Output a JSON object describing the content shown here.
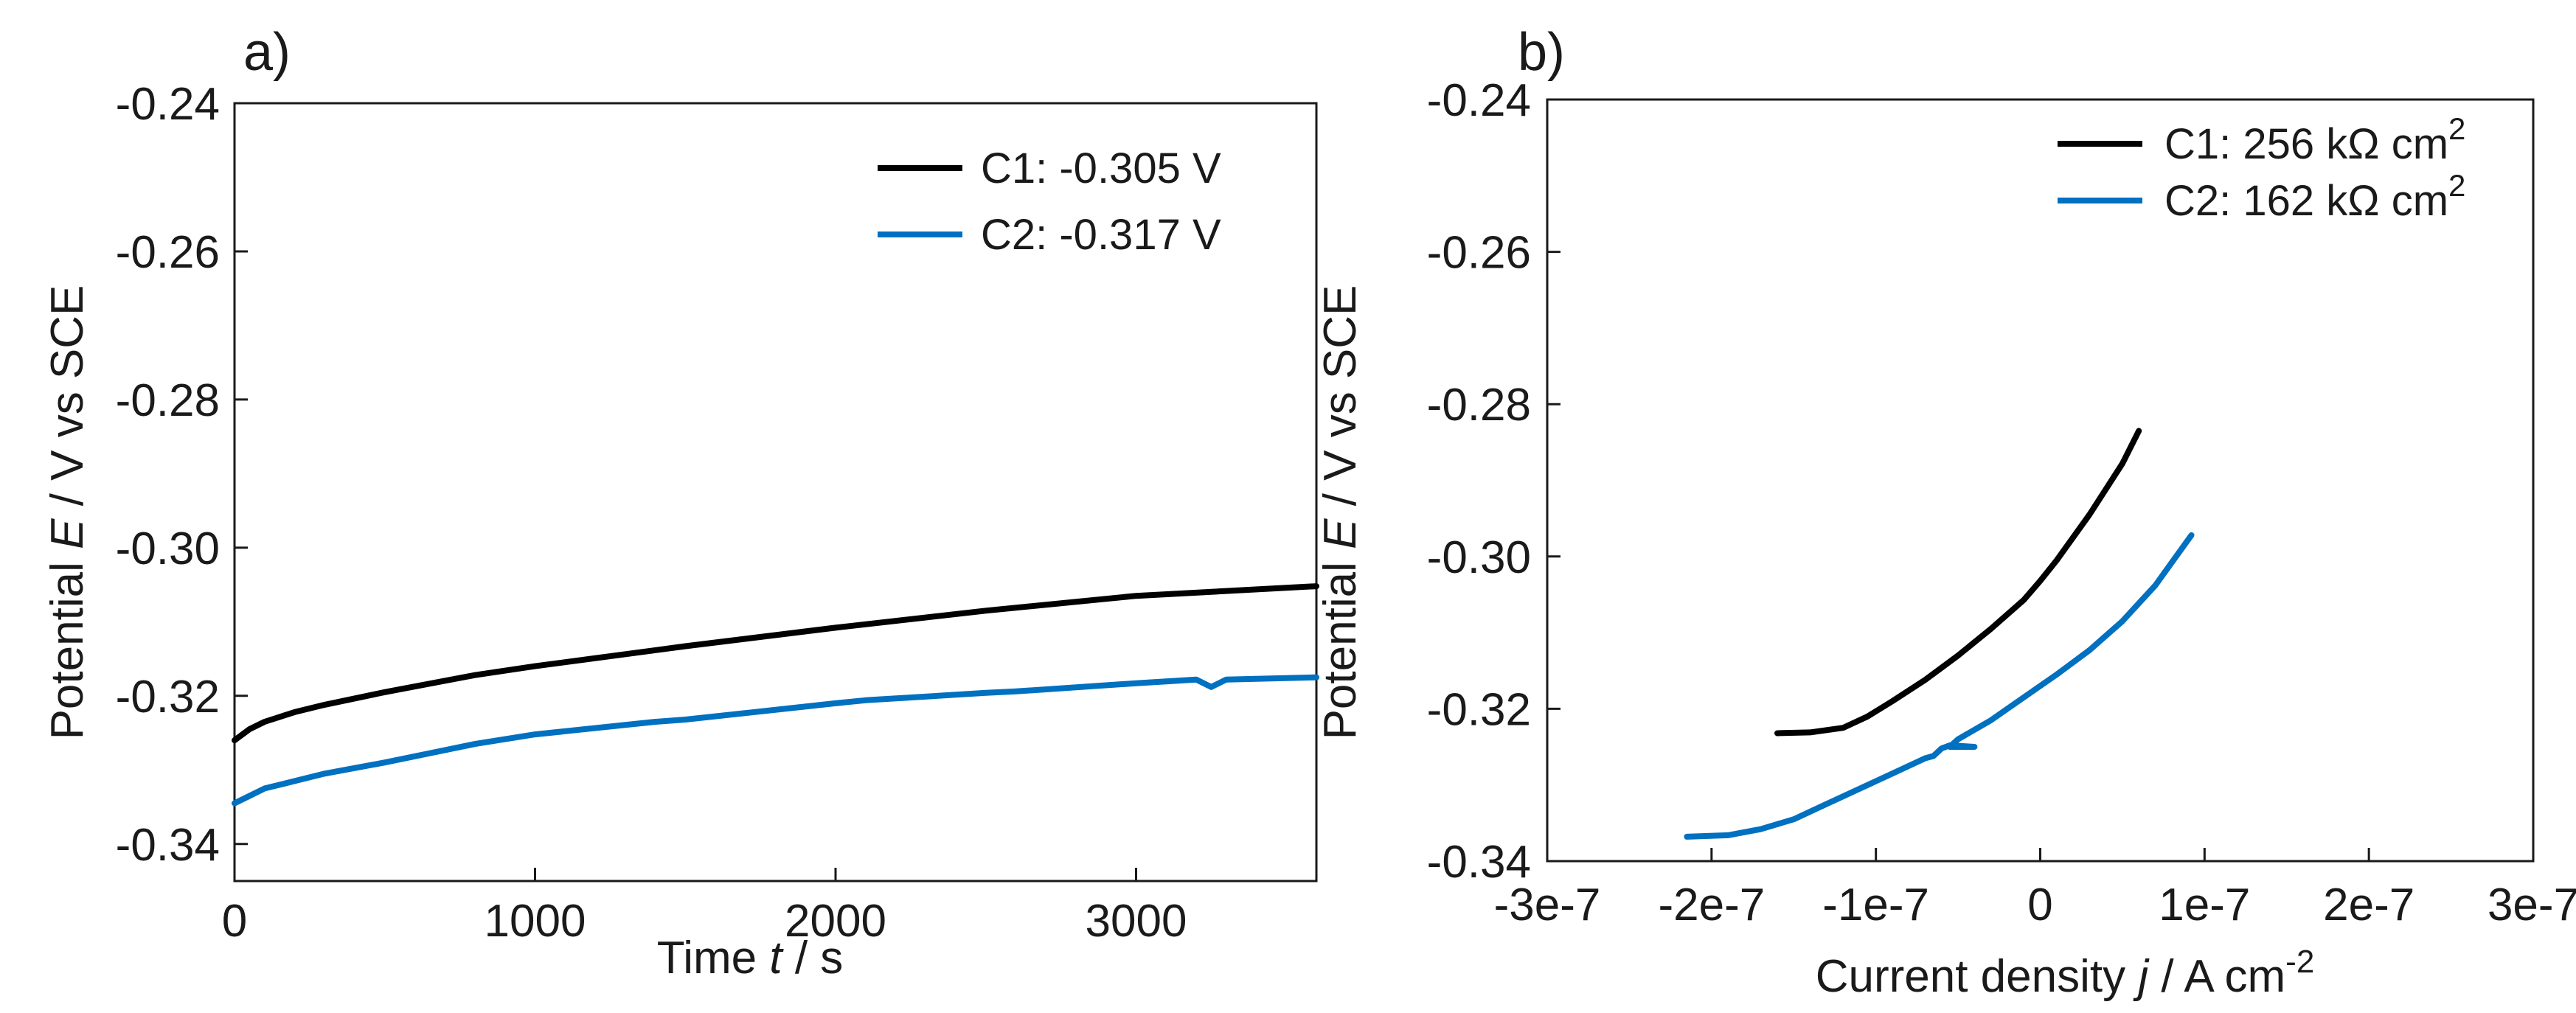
{
  "chart_data": [
    {
      "panel": "a)",
      "type": "line",
      "xlabel": {
        "prefix": "Time ",
        "var": "t",
        "suffix": " / s"
      },
      "ylabel": {
        "prefix": "Potential ",
        "var": "E",
        "suffix": " / V vs SCE"
      },
      "xlim": [
        0,
        3600
      ],
      "ylim": [
        -0.345,
        -0.24
      ],
      "xticks": [
        0,
        1000,
        2000,
        3000
      ],
      "xtick_labels": [
        "0",
        "1000",
        "2000",
        "3000"
      ],
      "yticks": [
        -0.34,
        -0.32,
        -0.3,
        -0.28,
        -0.26,
        -0.24
      ],
      "ytick_labels": [
        "-0.34",
        "-0.32",
        "-0.30",
        "-0.28",
        "-0.26",
        "-0.24"
      ],
      "legend_position": "top-right",
      "series": [
        {
          "name": "C1: -0.305 V",
          "color": "#000000",
          "x": [
            0,
            50,
            100,
            200,
            300,
            500,
            800,
            1000,
            1500,
            2000,
            2500,
            3000,
            3600
          ],
          "y": [
            -0.326,
            -0.3245,
            -0.3235,
            -0.3222,
            -0.3212,
            -0.3195,
            -0.3172,
            -0.316,
            -0.3133,
            -0.3108,
            -0.3085,
            -0.3065,
            -0.3052
          ]
        },
        {
          "name": "C2: -0.317 V",
          "color": "#0070c0",
          "x": [
            0,
            50,
            100,
            200,
            300,
            500,
            800,
            1000,
            1400,
            1500,
            2000,
            2100,
            2500,
            2600,
            3000,
            3200,
            3250,
            3300,
            3600
          ],
          "y": [
            -0.3345,
            -0.3335,
            -0.3325,
            -0.3315,
            -0.3305,
            -0.329,
            -0.3265,
            -0.3252,
            -0.3235,
            -0.3232,
            -0.321,
            -0.3206,
            -0.3196,
            -0.3194,
            -0.3183,
            -0.3178,
            -0.3188,
            -0.3178,
            -0.3175
          ]
        }
      ]
    },
    {
      "panel": "b)",
      "type": "line",
      "xlabel": {
        "prefix": "Current density ",
        "var": "j",
        "suffix": " / A cm",
        "sup": "-2"
      },
      "ylabel": {
        "prefix": "Potential ",
        "var": "E",
        "suffix": " / V vs SCE"
      },
      "xlim": [
        -3e-07,
        3e-07
      ],
      "ylim": [
        -0.34,
        -0.24
      ],
      "xticks": [
        -3e-07,
        -2e-07,
        -1e-07,
        0,
        1e-07,
        2e-07,
        3e-07
      ],
      "xtick_labels": [
        "-3e-7",
        "-2e-7",
        "-1e-7",
        "0",
        "1e-7",
        "2e-7",
        "3e-7"
      ],
      "yticks": [
        -0.34,
        -0.32,
        -0.3,
        -0.28,
        -0.26,
        -0.24
      ],
      "ytick_labels": [
        "-0.34",
        "-0.32",
        "-0.30",
        "-0.28",
        "-0.26",
        "-0.24"
      ],
      "legend_position": "top-right",
      "series": [
        {
          "name": "C1: 256 kΩ cm",
          "name_sup": "2",
          "color": "#000000",
          "x": [
            -1.6e-07,
            -1.4e-07,
            -1.2e-07,
            -1.05e-07,
            -9e-08,
            -7e-08,
            -5e-08,
            -3e-08,
            -1e-08,
            0,
            1e-08,
            3e-08,
            5e-08,
            6e-08
          ],
          "y": [
            -0.3232,
            -0.3231,
            -0.3225,
            -0.321,
            -0.319,
            -0.3162,
            -0.313,
            -0.3095,
            -0.3057,
            -0.3032,
            -0.3005,
            -0.2945,
            -0.2878,
            -0.2835
          ]
        },
        {
          "name": "C2: 162 kΩ cm",
          "name_sup": "2",
          "color": "#0070c0",
          "x": [
            -2.15e-07,
            -1.9e-07,
            -1.7e-07,
            -1.5e-07,
            -1.3e-07,
            -1.1e-07,
            -9e-08,
            -7e-08,
            -6.5e-08,
            -6e-08,
            -5.5e-08,
            -4e-08,
            -5.5e-08,
            -5e-08,
            -3e-08,
            -1e-08,
            1e-08,
            3e-08,
            5e-08,
            7e-08,
            9.2e-08
          ],
          "y": [
            -0.3368,
            -0.3366,
            -0.3358,
            -0.3345,
            -0.3325,
            -0.3305,
            -0.3285,
            -0.3265,
            -0.3262,
            -0.3252,
            -0.3248,
            -0.325,
            -0.325,
            -0.324,
            -0.3215,
            -0.3185,
            -0.3155,
            -0.3123,
            -0.3085,
            -0.3038,
            -0.2972
          ]
        }
      ]
    }
  ]
}
